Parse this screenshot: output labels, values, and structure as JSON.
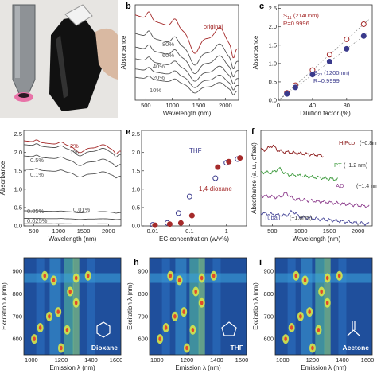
{
  "panels": {
    "a": {
      "label": ""
    },
    "b": {
      "label": "b"
    },
    "c": {
      "label": "c"
    },
    "d": {
      "label": ""
    },
    "e": {
      "label": "e"
    },
    "f": {
      "label": "f"
    },
    "g": {
      "label": ""
    },
    "h": {
      "label": "h"
    },
    "i": {
      "label": "i"
    }
  },
  "chart_data": [
    {
      "id": "b",
      "type": "line",
      "xlabel": "Wavelength (nm)",
      "ylabel": "Absorbance",
      "xlim": [
        300,
        2250
      ],
      "xticks": [
        "500",
        "1000",
        "1500",
        "2000"
      ],
      "xtick_values": [
        500,
        1000,
        1500,
        2000
      ],
      "series": [
        {
          "name": "original",
          "color": "#a52a2a",
          "offset": 0.0
        },
        {
          "name": "80%",
          "color": "#555555",
          "offset": 0.55
        },
        {
          "name": "60%",
          "color": "#555555",
          "offset": 0.95
        },
        {
          "name": "40%",
          "color": "#555555",
          "offset": 1.3
        },
        {
          "name": "20%",
          "color": "#555555",
          "offset": 1.6
        },
        {
          "name": "10%",
          "color": "#555555",
          "offset": 1.85
        }
      ]
    },
    {
      "id": "c",
      "type": "scatter",
      "xlabel": "Dilution factor (%)",
      "ylabel": "Absorbance",
      "xlim": [
        0,
        110
      ],
      "ylim": [
        0,
        2.6
      ],
      "xticks": [
        "0",
        "40",
        "80"
      ],
      "xtick_values": [
        0,
        40,
        80
      ],
      "yticks": [
        "0.0",
        "0.5",
        "1.0",
        "1.5",
        "2.0",
        "2.5"
      ],
      "ytick_values": [
        0.0,
        0.5,
        1.0,
        1.5,
        2.0,
        2.5
      ],
      "x": [
        10,
        20,
        40,
        60,
        80,
        100
      ],
      "series": [
        {
          "name": "S11",
          "label_main": "S",
          "label_sub": "11",
          "label_rest": " (2140nm)",
          "r_label": "R=0.9996",
          "color": "#a52a2a",
          "values": [
            0.2,
            0.41,
            0.82,
            1.24,
            1.66,
            2.07
          ]
        },
        {
          "name": "S22",
          "label_main": "S",
          "label_sub": "22",
          "label_rest": " (1200nm)",
          "r_label": "R=0.9999",
          "color": "#3a3a8c",
          "values": [
            0.17,
            0.35,
            0.7,
            1.05,
            1.4,
            1.75
          ]
        }
      ]
    },
    {
      "id": "d",
      "type": "line",
      "xlabel": "Wavelength (nm)",
      "ylabel": "Absorbance",
      "xlim": [
        300,
        2250
      ],
      "ylim": [
        0,
        2.6
      ],
      "xticks": [
        "500",
        "1000",
        "1500",
        "2000"
      ],
      "xtick_values": [
        500,
        1000,
        1500,
        2000
      ],
      "yticks": [
        "0.0",
        "0.5",
        "1.0",
        "1.5",
        "2.0",
        "2.5"
      ],
      "ytick_values": [
        0.0,
        0.5,
        1.0,
        1.5,
        2.0,
        2.5
      ],
      "series": [
        {
          "name": "2%",
          "color": "#a52a2a",
          "level": 2.25
        },
        {
          "name": "1%",
          "color": "#555555",
          "level": 2.15
        },
        {
          "name": "0.5%",
          "color": "#555555",
          "level": 1.85
        },
        {
          "name": "0.1%",
          "color": "#555555",
          "level": 1.5
        },
        {
          "name": "0.05%",
          "color": "#555555",
          "level": 0.4
        },
        {
          "name": "0.01%",
          "color": "#555555",
          "level": 0.2
        },
        {
          "name": "0.025%",
          "color": "#555555",
          "level": 0.06
        }
      ]
    },
    {
      "id": "e",
      "type": "scatter",
      "xlabel": "EC concentration (w/v%)",
      "ylabel": "Absorbance",
      "xscale": "log",
      "xlim": [
        0.005,
        3.5
      ],
      "ylim": [
        0,
        2.6
      ],
      "xticks": [
        "0.01",
        "0.1",
        "1"
      ],
      "xtick_values": [
        0.01,
        0.1,
        1
      ],
      "yticks": [
        "0.0",
        "0.5",
        "1.0",
        "1.5",
        "2.0",
        "2.5"
      ],
      "ytick_values": [
        0.0,
        0.5,
        1.0,
        1.5,
        2.0,
        2.5
      ],
      "series": [
        {
          "name": "THF",
          "color": "#3a3a8c",
          "marker": "open",
          "x": [
            0.01,
            0.025,
            0.05,
            0.1,
            0.5,
            1,
            2
          ],
          "values": [
            0.03,
            0.08,
            0.35,
            0.8,
            1.3,
            1.72,
            1.82
          ]
        },
        {
          "name": "1,4-dioxane",
          "color": "#a52a2a",
          "marker": "filled",
          "x": [
            0.01,
            0.025,
            0.05,
            0.1,
            0.5,
            1,
            2
          ],
          "values": [
            0.02,
            0.05,
            0.08,
            0.28,
            1.6,
            1.75,
            1.85
          ]
        }
      ]
    },
    {
      "id": "f",
      "type": "line",
      "xlabel": "Wavelength (nm)",
      "ylabel": "Absorbance (a. u., offset)",
      "xlim": [
        300,
        2250
      ],
      "xticks": [
        "500",
        "1000",
        "1500",
        "2000"
      ],
      "xtick_values": [
        500,
        1000,
        1500,
        2000
      ],
      "series": [
        {
          "name": "HiPco",
          "annot": "(~0.8nm)",
          "color": "#8b1a1a"
        },
        {
          "name": "PT",
          "annot": "(~1.2 nm)",
          "color": "#3c9a3c"
        },
        {
          "name": "AD",
          "annot": "(~1.4 nm)",
          "color": "#8b3a8b"
        },
        {
          "name": "Tuball",
          "annot": "(~1.8nm)",
          "color": "#4a4a9a"
        }
      ]
    },
    {
      "id": "g",
      "type": "heatmap",
      "xlabel": "Emission λ (nm)",
      "ylabel": "Excitation λ (nm)",
      "xticks": [
        "1000",
        "1200",
        "1400",
        "1600"
      ],
      "xtick_values": [
        1000,
        1200,
        1400,
        1600
      ],
      "yticks": [
        "600",
        "700",
        "800",
        "900"
      ],
      "ytick_values": [
        600,
        700,
        800,
        900
      ],
      "solvent": "Dioxane"
    },
    {
      "id": "h",
      "type": "heatmap",
      "xlabel": "Emission λ (nm)",
      "ylabel": "Excitation λ (nm)",
      "xticks": [
        "1000",
        "1200",
        "1400",
        "1600"
      ],
      "xtick_values": [
        1000,
        1200,
        1400,
        1600
      ],
      "yticks": [
        "600",
        "700",
        "800",
        "900"
      ],
      "ytick_values": [
        600,
        700,
        800,
        900
      ],
      "solvent": "THF"
    },
    {
      "id": "i",
      "type": "heatmap",
      "xlabel": "Emission λ (nm)",
      "ylabel": "Excitation λ (nm)",
      "xticks": [
        "1000",
        "1200",
        "1400",
        "1600"
      ],
      "xtick_values": [
        1000,
        1200,
        1400,
        1600
      ],
      "yticks": [
        "600",
        "700",
        "800",
        "900"
      ],
      "ytick_values": [
        600,
        700,
        800,
        900
      ],
      "solvent": "Acetone"
    }
  ]
}
